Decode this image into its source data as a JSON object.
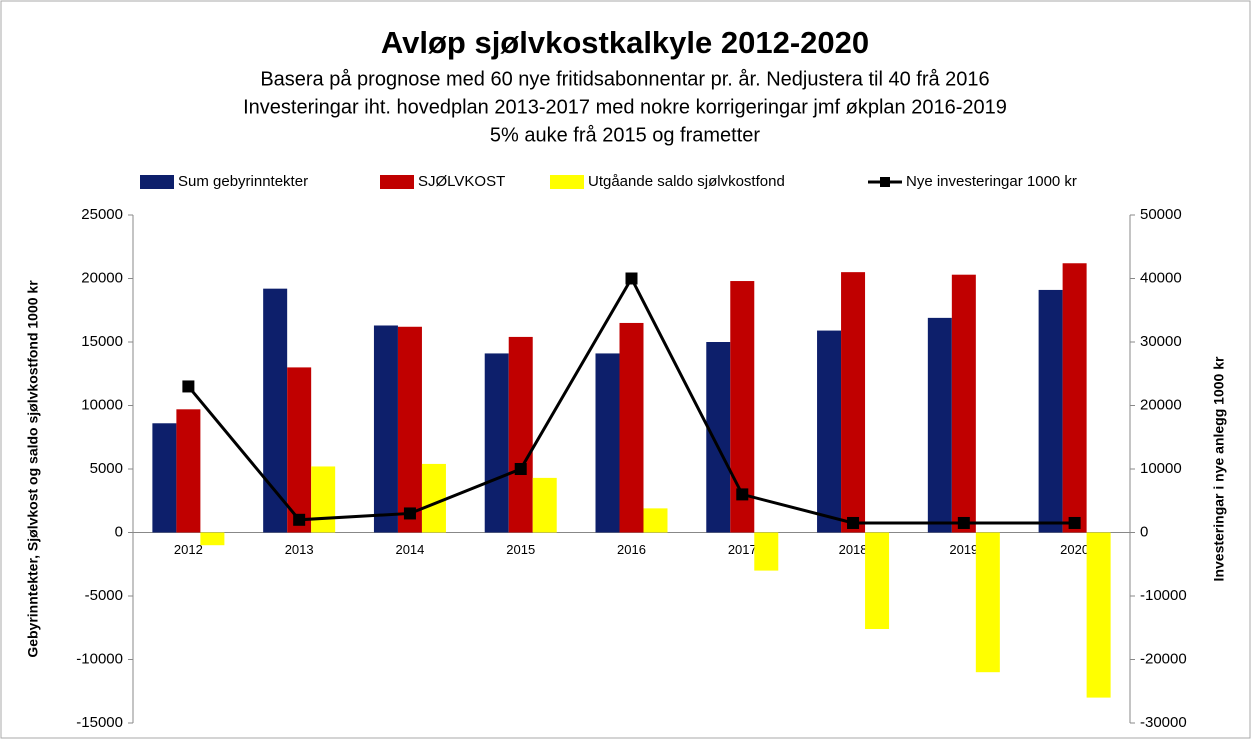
{
  "chart_data": {
    "type": "bar",
    "title": "Avløp sjølvkostkalkyle 2012-2020",
    "subtitle": [
      "Basera på prognose med 60 nye fritidsabonnentar pr. år.  Nedjustera til 40 frå 2016",
      "Investeringar iht. hovedplan 2013-2017 med nokre korrigeringar jmf økplan 2016-2019",
      "5% auke frå 2015 og frametter"
    ],
    "y_label": "Gebyrinntekter, Sjølvkost og saldo sjølvkostfond  1000 kr",
    "y2_label": "Investeringar i nye anlegg 1000 kr",
    "categories": [
      "2012",
      "2013",
      "2014",
      "2015",
      "2016",
      "2017",
      "2018",
      "2019",
      "2020"
    ],
    "series": [
      {
        "name": "Sum gebyrinntekter",
        "color": "#0d1f6b",
        "type": "bar",
        "values": [
          8600,
          19200,
          16300,
          14100,
          14100,
          15000,
          15900,
          16900,
          19100
        ]
      },
      {
        "name": "SJØLVKOST",
        "color": "#c00000",
        "type": "bar",
        "values": [
          9700,
          13000,
          16200,
          15400,
          16500,
          19800,
          20500,
          20300,
          21200
        ]
      },
      {
        "name": "Utgåande saldo sjølvkostfond",
        "color": "#ffff00",
        "type": "bar",
        "values": [
          -1000,
          5200,
          5400,
          4300,
          1900,
          -3000,
          -7600,
          -11000,
          -13000
        ]
      },
      {
        "name": "Nye investeringar 1000 kr",
        "color": "#000000",
        "type": "line",
        "axis": "y2",
        "values": [
          23000,
          2000,
          3000,
          10000,
          40000,
          6000,
          1500,
          1500,
          1500
        ]
      }
    ],
    "ylim": [
      -15000,
      25000
    ],
    "yticks": [
      -15000,
      -10000,
      -5000,
      0,
      5000,
      10000,
      15000,
      20000,
      25000
    ],
    "y2lim": [
      -30000,
      50000
    ],
    "y2ticks": [
      -30000,
      -20000,
      -10000,
      0,
      10000,
      20000,
      30000,
      40000,
      50000
    ],
    "legend": "top",
    "grid": false
  }
}
